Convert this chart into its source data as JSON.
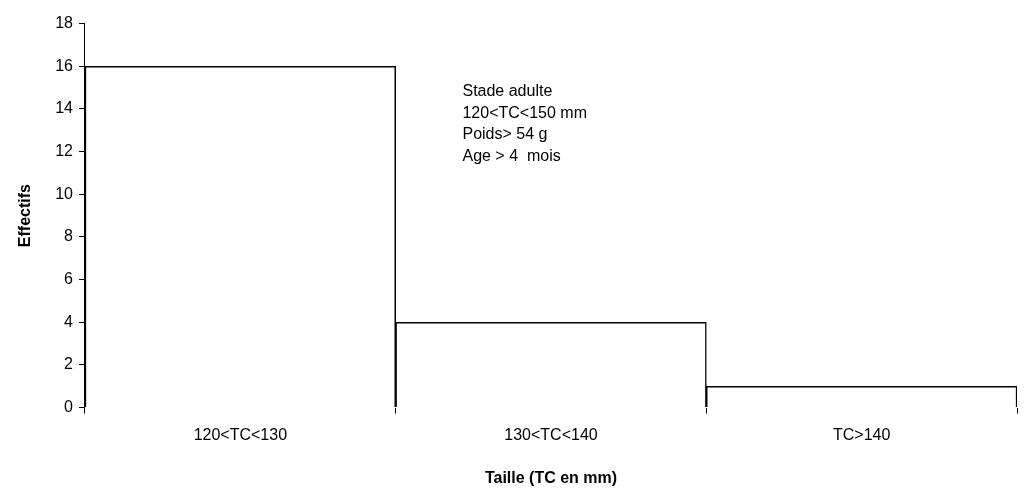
{
  "chart_data": {
    "type": "bar",
    "xlabel": "Taille (TC en mm)",
    "ylabel": "Effectifs",
    "categories": [
      "120<TC<130",
      "130<TC<140",
      "TC>140"
    ],
    "values": [
      16,
      4,
      1
    ],
    "color": "#ffffff",
    "ylim": [
      0,
      18
    ],
    "yticks": [
      0,
      2,
      4,
      6,
      8,
      10,
      12,
      14,
      16,
      18
    ],
    "grid": false,
    "legend": false,
    "annotations": [
      "Stade adulte",
      "120<TC<150 mm",
      "Poids> 54 g",
      "Age > 4  mois"
    ]
  }
}
